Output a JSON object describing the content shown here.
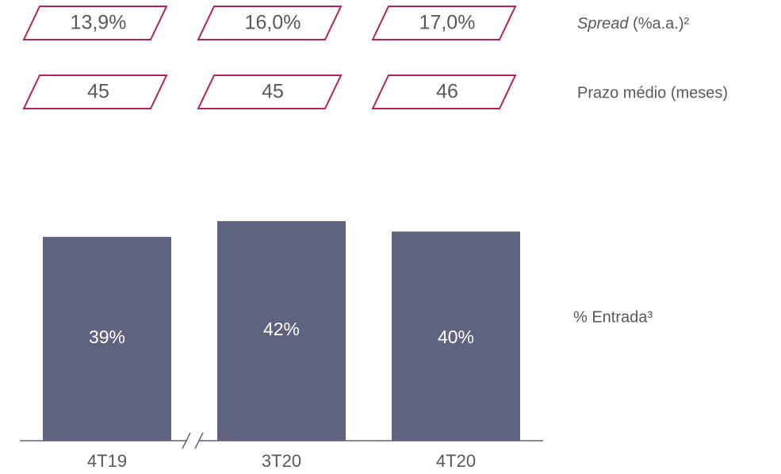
{
  "chart_data": {
    "type": "bar",
    "categories": [
      "4T19",
      "3T20",
      "4T20"
    ],
    "series": [
      {
        "name": "% Entrada³",
        "color": "#5f6380",
        "values": [
          39,
          42,
          40
        ],
        "value_labels": [
          "39%",
          "42%",
          "40%"
        ]
      }
    ],
    "rows": [
      {
        "label": "Spread (%a.a.)²",
        "values": [
          13.9,
          16.0,
          17.0
        ],
        "value_labels": [
          "13,9%",
          "16,0%",
          "17,0%"
        ],
        "color": "#b8215b"
      },
      {
        "label": "Prazo médio (meses)",
        "values": [
          45,
          45,
          46
        ],
        "color": "#b8215b"
      }
    ]
  }
}
